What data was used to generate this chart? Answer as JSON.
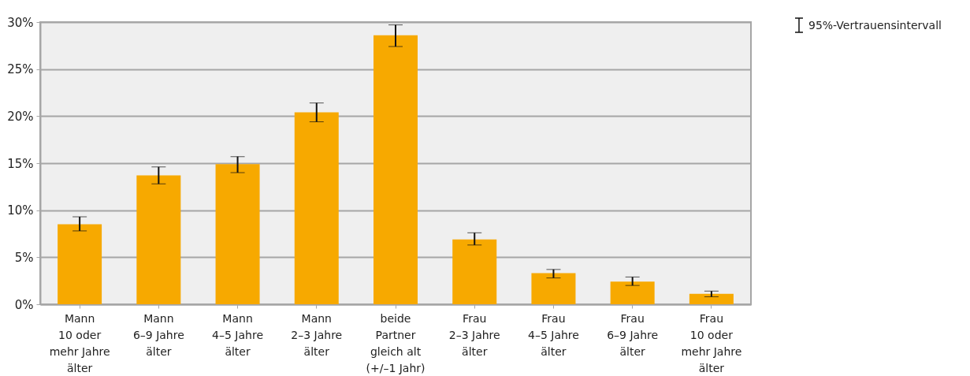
{
  "chart_data": {
    "type": "bar",
    "categories": [
      "Mann\n10 oder\nmehr Jahre\nälter",
      "Mann\n6–9 Jahre\nälter",
      "Mann\n4–5 Jahre\nälter",
      "Mann\n2–3 Jahre\nälter",
      "beide\nPartner\ngleich alt\n(+/–1 Jahr)",
      "Frau\n2–3 Jahre\nälter",
      "Frau\n4–5 Jahre\nälter",
      "Frau\n6–9 Jahre\nälter",
      "Frau\n10 oder\nmehr Jahre\nälter"
    ],
    "values": [
      8.5,
      13.7,
      14.9,
      20.4,
      28.6,
      6.9,
      3.3,
      2.4,
      1.1
    ],
    "errors": [
      [
        7.8,
        9.3
      ],
      [
        12.8,
        14.6
      ],
      [
        14.0,
        15.7
      ],
      [
        19.4,
        21.4
      ],
      [
        27.4,
        29.7
      ],
      [
        6.3,
        7.6
      ],
      [
        2.8,
        3.7
      ],
      [
        2.0,
        2.9
      ],
      [
        0.8,
        1.4
      ]
    ],
    "color": "#f7a900",
    "ylim": [
      0,
      30
    ],
    "yticks": [
      {
        "value": 0,
        "label": "0%"
      },
      {
        "value": 5,
        "label": "5%"
      },
      {
        "value": 10,
        "label": "10%"
      },
      {
        "value": 15,
        "label": "15%"
      },
      {
        "value": 20,
        "label": "20%"
      },
      {
        "value": 25,
        "label": "25%"
      },
      {
        "value": 30,
        "label": "30%"
      }
    ],
    "grid": "y",
    "annotations": [
      "95%-Vertrauensintervall"
    ]
  }
}
